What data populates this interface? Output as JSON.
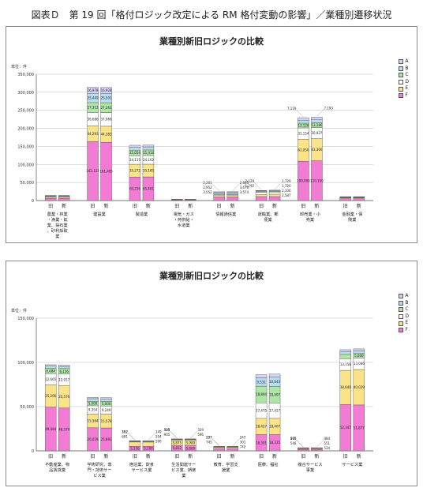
{
  "figure_title": "図表Ｄ　第 19 回「格付ロジック改定による RM 格付変動の影響」／業種別遷移状況",
  "legend_labels": [
    "A",
    "B",
    "C",
    "D",
    "E",
    "F"
  ],
  "segment_colors": [
    "#f27bd3",
    "#fbe38a",
    "#ffffff",
    "#aee6a5",
    "#b7ddf3",
    "#d7d1f6"
  ],
  "bar_labels": [
    "旧",
    "新"
  ],
  "chart_data": [
    {
      "type": "bar",
      "stacked": true,
      "title": "業種別新旧ロジックの比較",
      "ylabel": "単位：件",
      "ylim": [
        0,
        350000
      ],
      "yticks": [
        "0",
        "50,000",
        "100,000",
        "150,000",
        "200,000",
        "250,000",
        "300,000",
        "350,000"
      ],
      "grid": true,
      "legend_position": "right",
      "categories": [
        "農業・林業・漁業・鉱業、採石業、砂利採取業",
        "建設業",
        "製造業",
        "電気・ガス・熱供給・水道業",
        "情報通信業",
        "運輸業、郵便業",
        "卸売業・小売業",
        "金融業・保険業"
      ],
      "bars": [
        {
          "f": [
            6000,
            6000
          ],
          "e": [
            3000,
            3000
          ],
          "d": [
            2000,
            2000
          ],
          "c": [
            1500,
            1500
          ],
          "b": [
            1000,
            1000
          ],
          "a": [
            500,
            500
          ],
          "show": false
        },
        {
          "f": [
            163131,
            161485
          ],
          "e": [
            44293,
            44383
          ],
          "d": [
            36686,
            37966
          ],
          "c": [
            27312,
            27263
          ],
          "b": [
            25449,
            25501
          ],
          "a": [
            16978,
            16928
          ],
          "show": true
        },
        {
          "f": [
            65216,
            65461
          ],
          "e": [
            35272,
            35185
          ],
          "d": [
            24115,
            24162
          ],
          "c": [
            15054,
            15314
          ],
          "b": [
            8548,
            8579
          ],
          "a": [
            4984,
            4961
          ],
          "show": true
        },
        {
          "f": [
            1600,
            1600
          ],
          "e": [
            700,
            700
          ],
          "d": [
            500,
            500
          ],
          "c": [
            300,
            300
          ],
          "b": [
            200,
            200
          ],
          "a": [
            100,
            100
          ],
          "show": false
        },
        {
          "f": [
            10087,
            10056
          ],
          "e": [
            3552,
            3574
          ],
          "d": [
            2952,
            2864
          ],
          "c": [
            2201,
            2665
          ],
          "b": [
            3870,
            3670
          ],
          "a": [
            1600,
            1600
          ],
          "show": true
        },
        {
          "f": [
            10960,
            10966
          ],
          "e": [
            6000,
            6541
          ],
          "d": [
            6000,
            6300
          ],
          "c": [
            2129,
            2000
          ],
          "b": [
            1729,
            1720
          ],
          "a": [
            1200,
            1200
          ],
          "show": true
        },
        {
          "f": [
            109000,
            110150
          ],
          "e": [
            61050,
            61300
          ],
          "d": [
            31154,
            30927
          ],
          "c": [
            13128,
            13186
          ],
          "b": [
            8150,
            8200
          ],
          "a": [
            7119,
            7193
          ],
          "show": true
        },
        {
          "f": [
            5000,
            5000
          ],
          "e": [
            2000,
            2000
          ],
          "d": [
            1500,
            1500
          ],
          "c": [
            1000,
            1000
          ],
          "b": [
            700,
            700
          ],
          "a": [
            500,
            500
          ],
          "show": false
        }
      ],
      "callouts": [
        {
          "bar": 4,
          "side": "old",
          "labels": [
            "2,201",
            "2,952",
            "3,552"
          ]
        },
        {
          "bar": 4,
          "side": "new",
          "labels": [
            "2,665",
            "3,670",
            "3,574"
          ]
        },
        {
          "bar": 5,
          "side": "old",
          "labels": [
            "2,129",
            "1,792"
          ]
        },
        {
          "bar": 5,
          "side": "new",
          "labels": [
            "1,729",
            "1,720",
            "2,106",
            "2,587"
          ]
        },
        {
          "bar": 6,
          "side": "old",
          "labels": [
            "7,119"
          ]
        },
        {
          "bar": 6,
          "side": "new",
          "labels": [
            "7,193"
          ]
        }
      ]
    },
    {
      "type": "bar",
      "stacked": true,
      "title": "業種別新旧ロジックの比較",
      "ylabel": "単位：件",
      "ylim": [
        0,
        150000
      ],
      "yticks": [
        "0",
        "50,000",
        "100,000",
        "150,000"
      ],
      "grid": true,
      "legend_position": "right",
      "categories": [
        "不動産業、物品賃貸業",
        "学術研究、専門・技術サービス業",
        "宿泊業、飲食サービス業",
        "生活関連サービス業、娯楽業",
        "教育、学習支援業",
        "医療、福祉",
        "複合サービス事業",
        "サービス業"
      ],
      "bars": [
        {
          "f": [
            49484,
            48379
          ],
          "e": [
            25206,
            25576
          ],
          "d": [
            12665,
            12917
          ],
          "c": [
            6084,
            6156
          ],
          "b": [
            2300,
            2300
          ],
          "a": [
            1600,
            1600
          ],
          "show": true
        },
        {
          "f": [
            26029,
            25893
          ],
          "e": [
            15564,
            15578
          ],
          "d": [
            9354,
            9249
          ],
          "c": [
            5000,
            5000
          ],
          "b": [
            3000,
            3000
          ],
          "a": [
            1500,
            1500
          ],
          "show": true
        },
        {
          "f": [
            5116,
            5100
          ],
          "e": [
            4832,
            4800
          ],
          "d": [
            700,
            700
          ],
          "c": [
            400,
            400
          ],
          "b": [
            200,
            200
          ],
          "a": [
            100,
            100
          ],
          "show": true
        },
        {
          "f": [
            5812,
            5800
          ],
          "e": [
            5875,
            5900
          ],
          "d": [
            900,
            900
          ],
          "c": [
            500,
            500
          ],
          "b": [
            300,
            300
          ],
          "a": [
            100,
            100
          ],
          "show": true
        },
        {
          "f": [
            2500,
            2500
          ],
          "e": [
            1500,
            1500
          ],
          "d": [
            400,
            400
          ],
          "c": [
            300,
            300
          ],
          "b": [
            200,
            200
          ],
          "a": [
            100,
            100
          ],
          "show": true
        },
        {
          "f": [
            18301,
            18325
          ],
          "e": [
            18427,
            18407
          ],
          "d": [
            17475,
            17427
          ],
          "c": [
            18894,
            18497
          ],
          "b": [
            9531,
            10643
          ],
          "a": [
            3500,
            3500
          ],
          "show": true
        },
        {
          "f": [
            1500,
            1500
          ],
          "e": [
            1000,
            1000
          ],
          "d": [
            400,
            400
          ],
          "c": [
            300,
            300
          ],
          "b": [
            200,
            200
          ],
          "a": [
            100,
            100
          ],
          "show": true
        },
        {
          "f": [
            52347,
            51877
          ],
          "e": [
            38640,
            40029
          ],
          "d": [
            13156,
            13066
          ],
          "c": [
            4901,
            5000
          ],
          "b": [
            3300,
            3300
          ],
          "a": [
            2000,
            2000
          ],
          "show": true
        }
      ],
      "callouts": [
        {
          "bar": 2,
          "side": "old",
          "labels": [
            "367",
            "681"
          ]
        },
        {
          "bar": 2,
          "side": "new",
          "labels": [
            "149",
            "554",
            "590"
          ]
        },
        {
          "bar": 2,
          "side": "old",
          "labels": [
            "152"
          ]
        },
        {
          "bar": 3,
          "side": "old",
          "labels": [
            "599",
            "905"
          ]
        },
        {
          "bar": 3,
          "side": "new",
          "labels": [
            "329",
            "596"
          ]
        },
        {
          "bar": 3,
          "side": "old",
          "labels": [
            "325"
          ]
        },
        {
          "bar": 4,
          "side": "old",
          "labels": [
            "277",
            "745"
          ]
        },
        {
          "bar": 4,
          "side": "new",
          "labels": [
            "247",
            "301",
            "742"
          ]
        },
        {
          "bar": 4,
          "side": "old",
          "labels": [
            "257"
          ]
        },
        {
          "bar": 6,
          "side": "old",
          "labels": [
            "560",
            "546"
          ]
        },
        {
          "bar": 6,
          "side": "new",
          "labels": [
            "484",
            "551",
            "534"
          ]
        },
        {
          "bar": 6,
          "side": "old",
          "labels": [
            "475"
          ]
        }
      ]
    }
  ]
}
